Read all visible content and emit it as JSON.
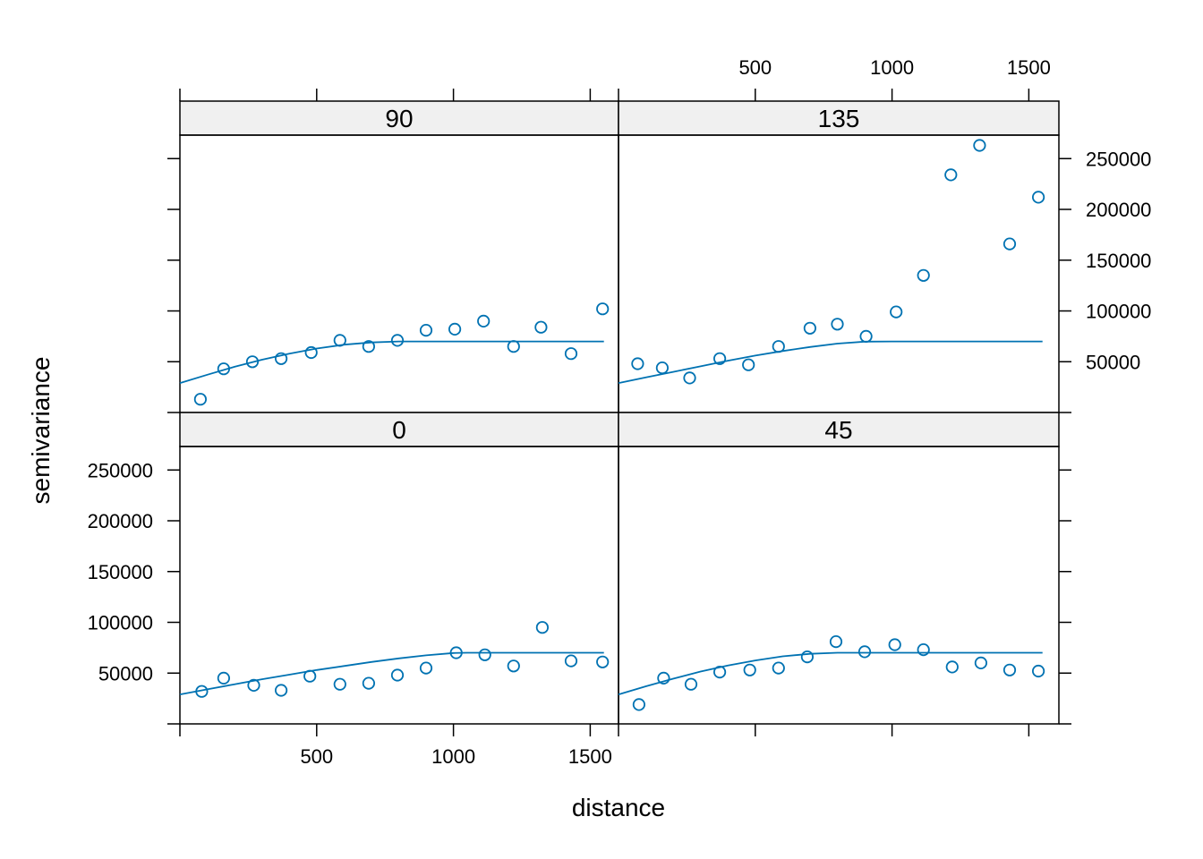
{
  "chart_data": {
    "type": "scatter",
    "xlabel": "distance",
    "ylabel": "semivariance",
    "xlim": [
      0,
      1600
    ],
    "ylim": [
      0,
      270000
    ],
    "x_ticks": [
      500,
      1000,
      1500
    ],
    "y_ticks": [
      50000,
      100000,
      150000,
      200000,
      250000
    ],
    "x_tick_labels": [
      "500",
      "1000",
      "1500"
    ],
    "y_tick_labels": [
      "50000",
      "100000",
      "150000",
      "200000",
      "250000"
    ],
    "model_line_color": "#0072B2",
    "point_color": "#0072B2",
    "strip_color": "#f0f0f0",
    "panels": [
      {
        "label": "90",
        "points": {
          "x": [
            75,
            160,
            265,
            370,
            480,
            585,
            690,
            795,
            900,
            1005,
            1110,
            1220,
            1320,
            1430,
            1545
          ],
          "y": [
            13000,
            43000,
            50000,
            53000,
            59000,
            71000,
            65000,
            71000,
            81000,
            82000,
            90000,
            65000,
            84000,
            58000,
            102000
          ]
        },
        "model": {
          "x": [
            0,
            100,
            200,
            300,
            400,
            500,
            600,
            700,
            800,
            900,
            1000,
            1100,
            1200,
            1300,
            1400,
            1500,
            1550
          ],
          "y": [
            29000,
            37200,
            45000,
            52000,
            58000,
            63000,
            66800,
            69000,
            70000,
            70000,
            70000,
            70000,
            70000,
            70000,
            70000,
            70000,
            70000
          ]
        }
      },
      {
        "label": "135",
        "points": {
          "x": [
            70,
            160,
            260,
            370,
            475,
            585,
            700,
            800,
            905,
            1015,
            1115,
            1215,
            1320,
            1430,
            1535
          ],
          "y": [
            48000,
            44000,
            34000,
            53000,
            47000,
            65000,
            83000,
            87000,
            75000,
            99000,
            135000,
            234000,
            263000,
            166000,
            212000
          ]
        },
        "model": {
          "x": [
            0,
            100,
            200,
            300,
            400,
            500,
            600,
            700,
            800,
            900,
            1000,
            1100,
            1200,
            1300,
            1400,
            1500,
            1550
          ],
          "y": [
            29000,
            34500,
            40000,
            45500,
            51000,
            56000,
            60500,
            64500,
            67800,
            69800,
            70000,
            70000,
            70000,
            70000,
            70000,
            70000,
            70000
          ]
        }
      },
      {
        "label": "0",
        "points": {
          "x": [
            80,
            160,
            270,
            370,
            475,
            585,
            690,
            795,
            900,
            1010,
            1115,
            1220,
            1325,
            1430,
            1545
          ],
          "y": [
            32000,
            45000,
            38000,
            33000,
            47000,
            39000,
            40000,
            48000,
            55000,
            70000,
            68000,
            57000,
            95000,
            62000,
            61000
          ]
        },
        "model": {
          "x": [
            0,
            100,
            200,
            300,
            400,
            500,
            600,
            700,
            800,
            900,
            1000,
            1050,
            1100,
            1200,
            1300,
            1400,
            1500,
            1550
          ],
          "y": [
            29000,
            34000,
            39000,
            44000,
            48500,
            53000,
            57000,
            61000,
            64500,
            67500,
            69800,
            70000,
            70000,
            70000,
            70000,
            70000,
            70000,
            70000
          ]
        }
      },
      {
        "label": "45",
        "points": {
          "x": [
            75,
            165,
            265,
            370,
            480,
            585,
            690,
            795,
            900,
            1010,
            1115,
            1220,
            1325,
            1430,
            1535
          ],
          "y": [
            19000,
            45000,
            39000,
            51000,
            53000,
            55000,
            66000,
            81000,
            71000,
            78000,
            73000,
            56000,
            60000,
            53000,
            52000
          ]
        },
        "model": {
          "x": [
            0,
            100,
            200,
            300,
            400,
            500,
            600,
            700,
            800,
            900,
            1000,
            1100,
            1200,
            1300,
            1400,
            1500,
            1550
          ],
          "y": [
            29000,
            37000,
            44500,
            51500,
            57500,
            62500,
            66500,
            69000,
            70000,
            70000,
            70000,
            70000,
            70000,
            70000,
            70000,
            70000,
            70000
          ]
        }
      }
    ]
  }
}
